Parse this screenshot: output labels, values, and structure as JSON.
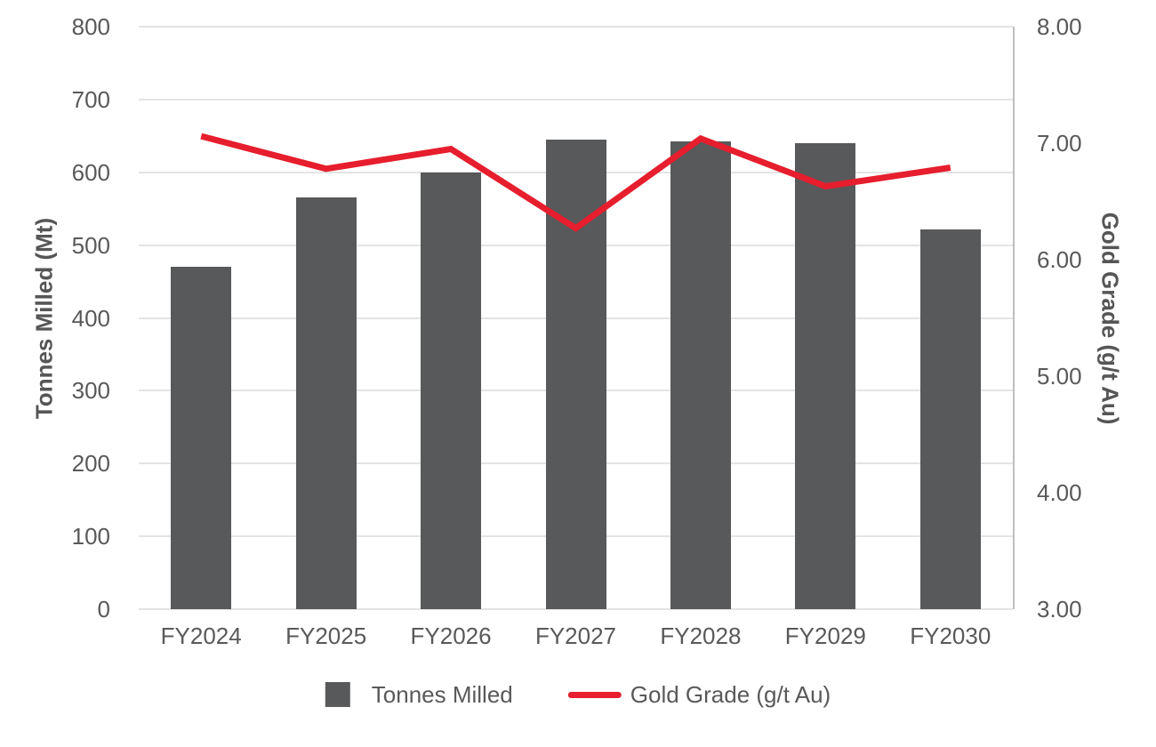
{
  "chart_data": {
    "type": "combo-bar-line",
    "categories": [
      "FY2024",
      "FY2025",
      "FY2026",
      "FY2027",
      "FY2028",
      "FY2029",
      "FY2030"
    ],
    "series": [
      {
        "name": "Tonnes Milled",
        "type": "bar",
        "axis": "left",
        "color": "#58595b",
        "values": [
          470,
          565,
          600,
          645,
          642,
          640,
          522
        ]
      },
      {
        "name": "Gold Grade (g/t Au)",
        "type": "line",
        "axis": "right",
        "color": "#e61e2d",
        "values": [
          7.06,
          6.78,
          6.95,
          6.27,
          7.04,
          6.63,
          6.79
        ]
      }
    ],
    "left_axis": {
      "title": "Tonnes Milled (Mt)",
      "min": 0,
      "max": 800,
      "step": 100,
      "tick_labels": [
        "0",
        "100",
        "200",
        "300",
        "400",
        "500",
        "600",
        "700",
        "800"
      ]
    },
    "right_axis": {
      "title": "Gold Grade (g/t Au)",
      "min": 3,
      "max": 8,
      "step": 1,
      "tick_labels": [
        "3.00",
        "4.00",
        "5.00",
        "6.00",
        "7.00",
        "8.00"
      ]
    },
    "legend": {
      "position": "bottom",
      "entries": [
        {
          "label": "Tonnes Milled",
          "swatch": "square",
          "color": "#58595b"
        },
        {
          "label": "Gold Grade (g/t Au)",
          "swatch": "line",
          "color": "#e61e2d"
        }
      ]
    },
    "grid": "horizontal-only",
    "colors": {
      "background": "#ffffff",
      "gridline": "#e4e4e4",
      "right_spine": "#bfbfbf",
      "tick_text": "#595959",
      "axis_title_text": "#565656",
      "x_label_text": "#595959",
      "legend_text": "#595959"
    }
  }
}
